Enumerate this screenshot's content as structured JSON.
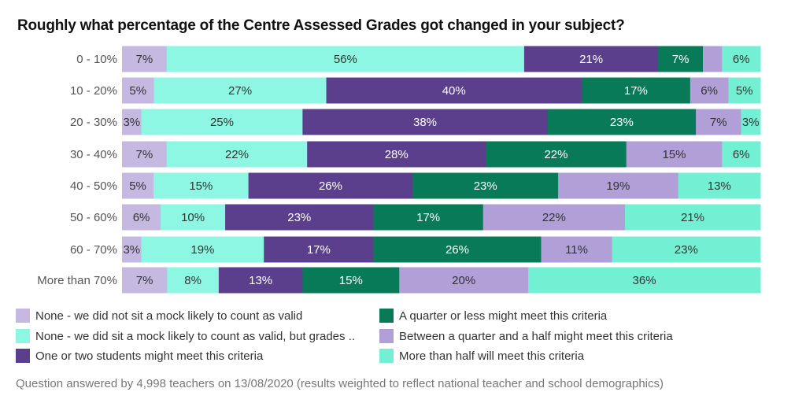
{
  "chart_data": {
    "type": "bar",
    "orientation": "horizontal-stacked-100",
    "title": "Roughly what percentage of the Centre Assessed Grades got changed in your subject?",
    "categories": [
      "0 - 10%",
      "10 - 20%",
      "20 - 30%",
      "30 - 40%",
      "40 - 50%",
      "50 - 60%",
      "60 - 70%",
      "More than 70%"
    ],
    "series": [
      {
        "name": "None - we did not sit a mock likely to count as valid",
        "color": "#c6b9e1",
        "text": "#333333",
        "values": [
          7,
          5,
          3,
          7,
          5,
          6,
          3,
          7
        ]
      },
      {
        "name": "None - we did sit a mock likely to count as valid, but grades ..",
        "color": "#8ef7e4",
        "text": "#333333",
        "values": [
          56,
          27,
          25,
          22,
          15,
          10,
          19,
          8
        ]
      },
      {
        "name": "One or two students might meet this criteria",
        "color": "#5b3f8c",
        "text": "#ffffff",
        "values": [
          21,
          40,
          38,
          28,
          26,
          23,
          17,
          13
        ]
      },
      {
        "name": "A quarter or less might meet this criteria",
        "color": "#087a57",
        "text": "#ffffff",
        "values": [
          7,
          17,
          23,
          22,
          23,
          17,
          26,
          15
        ]
      },
      {
        "name": "Between a quarter and a half might meet this criteria",
        "color": "#b19fd8",
        "text": "#333333",
        "values": [
          3,
          6,
          7,
          15,
          19,
          22,
          11,
          20
        ]
      },
      {
        "name": "More than half will meet this criteria",
        "color": "#73f0d4",
        "text": "#333333",
        "values": [
          6,
          5,
          3,
          6,
          13,
          21,
          23,
          36
        ]
      }
    ],
    "hidden_labels": [
      [
        0,
        4
      ]
    ],
    "legend": "bottom",
    "footer": "Question answered by 4,998 teachers on 13/08/2020 (results weighted to reflect national teacher and school demographics)"
  }
}
